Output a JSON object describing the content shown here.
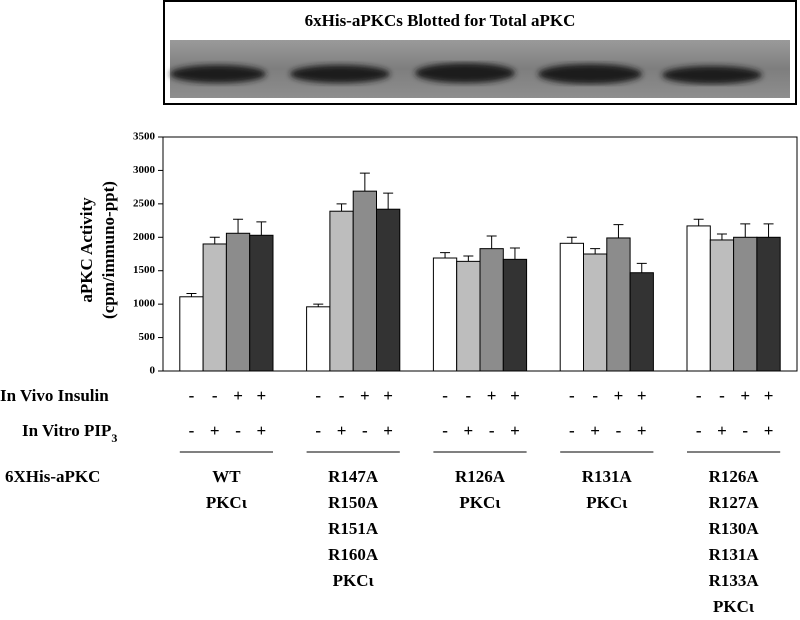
{
  "blot": {
    "title": "6xHis-aPKCs Blotted for Total aPKC"
  },
  "chart_data": {
    "type": "bar",
    "y_label": [
      "aPKC Activity",
      "(cpm/immuno-ppt)"
    ],
    "categories": [
      [
        "WT",
        "PKCι"
      ],
      [
        "R147A",
        "R150A",
        "R151A",
        "R160A",
        "PKCι"
      ],
      [
        "R126A",
        "PKCι"
      ],
      [
        "R131A",
        "PKCι"
      ],
      [
        "R126A",
        "R127A",
        "R130A",
        "R131A",
        "R133A",
        "PKCι"
      ]
    ],
    "series": [
      {
        "color": "#ffffff",
        "values": [
          1110,
          960,
          1690,
          1910,
          2170
        ],
        "errors": [
          50,
          40,
          80,
          90,
          100
        ]
      },
      {
        "color": "#bdbdbd",
        "values": [
          1900,
          2390,
          1640,
          1750,
          1960
        ],
        "errors": [
          100,
          110,
          80,
          80,
          90
        ]
      },
      {
        "color": "#8c8c8c",
        "values": [
          2060,
          2690,
          1830,
          1990,
          2000
        ],
        "errors": [
          210,
          270,
          190,
          200,
          200
        ]
      },
      {
        "color": "#333333",
        "values": [
          2030,
          2420,
          1670,
          1470,
          2000
        ],
        "errors": [
          200,
          240,
          170,
          140,
          200
        ]
      }
    ],
    "ylim": [
      0,
      3500
    ],
    "yticks": [
      0,
      500,
      1000,
      1500,
      2000,
      2500,
      3000,
      3500
    ]
  },
  "conditions": {
    "rows": [
      {
        "label": "In Vivo Insulin",
        "signs": [
          "-",
          "-",
          "+",
          "+"
        ]
      },
      {
        "label": "In Vitro PIP",
        "sub": "3",
        "signs": [
          "-",
          "+",
          "-",
          "+"
        ]
      }
    ],
    "group_label": "6XHis-aPKC"
  }
}
